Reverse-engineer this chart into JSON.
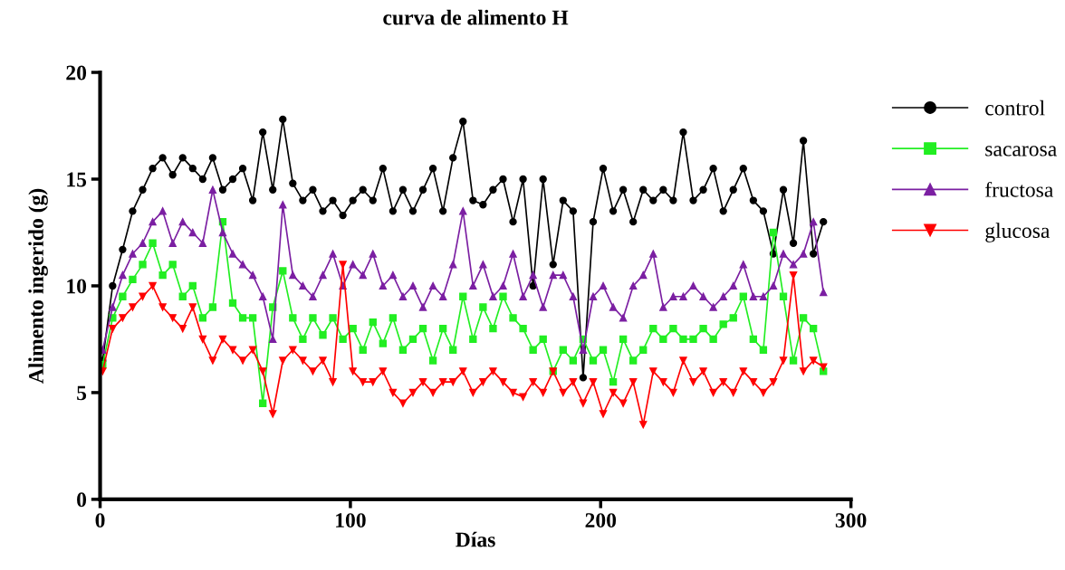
{
  "chart_data": {
    "type": "line",
    "title": "curva de alimento H",
    "xlabel": "Días",
    "ylabel": "Alimento ingerido (g)",
    "xlim": [
      0,
      300
    ],
    "xticks": [
      0,
      100,
      200,
      300
    ],
    "ylim": [
      0,
      20
    ],
    "yticks": [
      0,
      5,
      10,
      15,
      20
    ],
    "grid": false,
    "legend": "right",
    "line_style": "solid",
    "x": [
      1,
      5,
      9,
      13,
      17,
      21,
      25,
      29,
      33,
      37,
      41,
      45,
      49,
      53,
      57,
      61,
      65,
      69,
      73,
      77,
      81,
      85,
      89,
      93,
      97,
      101,
      105,
      109,
      113,
      117,
      121,
      125,
      129,
      133,
      137,
      141,
      145,
      149,
      153,
      157,
      161,
      165,
      169,
      173,
      177,
      181,
      185,
      189,
      193,
      197,
      201,
      205,
      209,
      213,
      217,
      221,
      225,
      229,
      233,
      237,
      241,
      245,
      249,
      253,
      257,
      261,
      265,
      269,
      273,
      277,
      281,
      285,
      289
    ],
    "series": [
      {
        "name": "control",
        "color": "#000000",
        "marker": "circle",
        "values": [
          6.5,
          10,
          11.7,
          13.5,
          14.5,
          15.5,
          16,
          15.2,
          16,
          15.5,
          15,
          16,
          14.5,
          15,
          15.5,
          14,
          17.2,
          14.5,
          17.8,
          14.8,
          14,
          14.5,
          13.5,
          14,
          13.3,
          14,
          14.5,
          14,
          15.5,
          13.5,
          14.5,
          13.5,
          14.5,
          15.5,
          13.5,
          16,
          17.7,
          14,
          13.8,
          14.5,
          15,
          13,
          15,
          10,
          15,
          11,
          14,
          13.5,
          5.7,
          13,
          15.5,
          13.5,
          14.5,
          13,
          14.5,
          14,
          14.5,
          14,
          17.2,
          14,
          14.5,
          15.5,
          13.5,
          14.5,
          15.5,
          14,
          13.5,
          11.5,
          14.5,
          12,
          16.8,
          11.5,
          13
        ]
      },
      {
        "name": "sacarosa",
        "color": "#22ee22",
        "marker": "square",
        "values": [
          6.3,
          8.5,
          9.5,
          10.3,
          11,
          12,
          10.5,
          11,
          9.5,
          10,
          8.5,
          9,
          13,
          9.2,
          8.5,
          8.5,
          4.5,
          9,
          10.7,
          8.5,
          7.5,
          8.5,
          7.7,
          8.5,
          7.5,
          8,
          7,
          8.3,
          7.3,
          8.5,
          7,
          7.5,
          8,
          6.5,
          8,
          7,
          9.5,
          7.5,
          9,
          8,
          9.5,
          8.5,
          8,
          7,
          7.5,
          6,
          7,
          6.5,
          7.5,
          6.5,
          7,
          5.5,
          7.5,
          6.5,
          7,
          8,
          7.5,
          8,
          7.5,
          7.5,
          8,
          7.5,
          8.2,
          8.5,
          9.5,
          7.5,
          7,
          12.5,
          9.5,
          6.5,
          8.5,
          8,
          6
        ]
      },
      {
        "name": "fructosa",
        "color": "#7b1fa2",
        "marker": "triangle",
        "values": [
          7,
          9,
          10.5,
          11.5,
          12,
          13,
          13.5,
          12,
          13,
          12.5,
          12,
          14.5,
          12.5,
          11.5,
          11,
          10.5,
          9.5,
          7.5,
          13.8,
          10.5,
          10,
          9.5,
          10.5,
          11.5,
          10,
          11,
          10.5,
          11.5,
          10,
          10.5,
          9.5,
          10,
          9,
          10,
          9.5,
          11,
          13.5,
          10,
          11,
          9.5,
          10,
          11.5,
          9.5,
          10.5,
          9,
          10.5,
          10.5,
          9.5,
          7,
          9.5,
          10,
          9,
          8.5,
          10,
          10.5,
          11.5,
          9,
          9.5,
          9.5,
          10,
          9.5,
          9,
          9.5,
          10,
          11,
          9.5,
          9.5,
          10,
          11.5,
          11,
          11.5,
          13,
          9.7
        ]
      },
      {
        "name": "glucosa",
        "color": "#ff0000",
        "marker": "triangle_down",
        "values": [
          6,
          8,
          8.5,
          9,
          9.5,
          10,
          9,
          8.5,
          8,
          9,
          7.5,
          6.5,
          7.5,
          7,
          6.5,
          7,
          6,
          4,
          6.5,
          7,
          6.5,
          6,
          6.5,
          5.5,
          11,
          6,
          5.5,
          5.5,
          6,
          5,
          4.5,
          5,
          5.5,
          5,
          5.5,
          5.5,
          6,
          5,
          5.5,
          6,
          5.5,
          5,
          4.8,
          5.5,
          5,
          6,
          5,
          5.5,
          4.5,
          5.5,
          4,
          5,
          4.5,
          5.5,
          3.5,
          6,
          5.5,
          5,
          6.5,
          5.5,
          6,
          5,
          5.5,
          5,
          6,
          5.5,
          5,
          5.5,
          6.5,
          10.5,
          6,
          6.5,
          6.2
        ]
      }
    ]
  }
}
